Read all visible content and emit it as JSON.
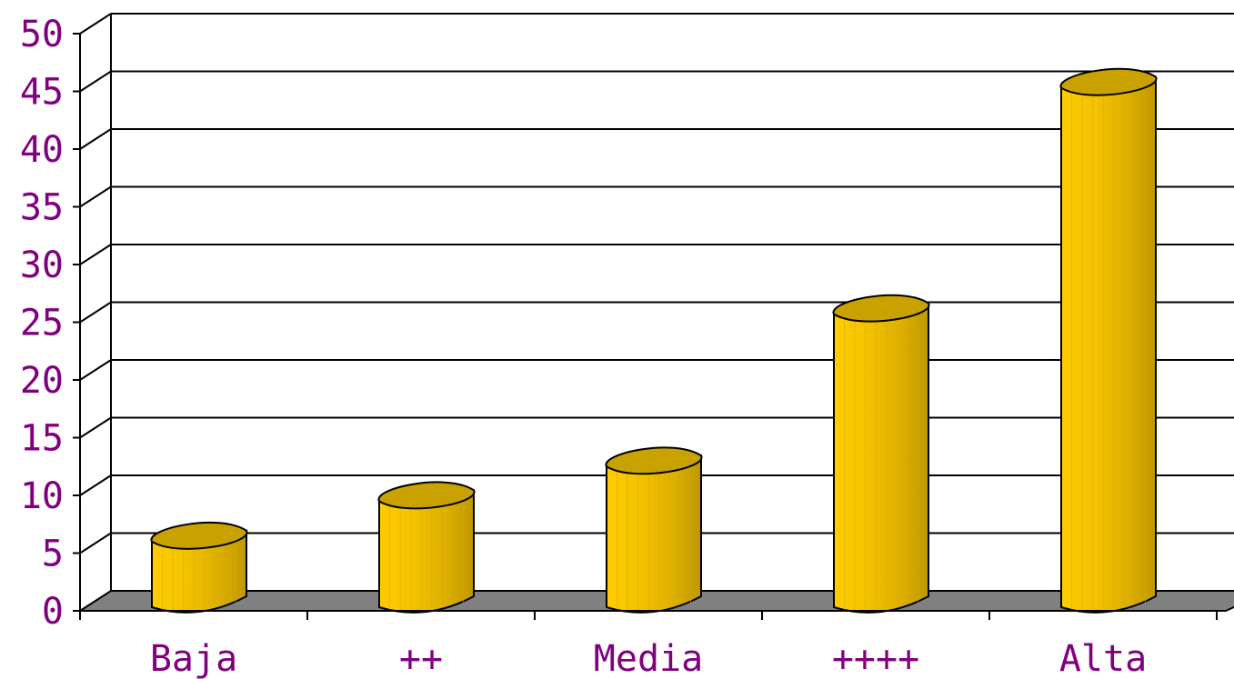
{
  "chart_data": {
    "type": "bar",
    "style": "3d-cylinder",
    "categories": [
      "Baja",
      "++",
      "Media",
      "++++",
      "Alta"
    ],
    "values": [
      6,
      9.5,
      12.5,
      25.7,
      45.3
    ],
    "title": "",
    "xlabel": "",
    "ylabel": "",
    "ylim": [
      0,
      50
    ],
    "yticks": [
      "0",
      "5",
      "10",
      "15",
      "20",
      "25",
      "30",
      "35",
      "40",
      "45",
      "50"
    ],
    "grid": true,
    "legend": "none",
    "colors": {
      "bar_light": "#FFCC00",
      "bar_dark": "#C8A000",
      "bar_top": "#C9A200",
      "floor": "#808080",
      "grid": "#000000",
      "label": "#800080"
    }
  }
}
